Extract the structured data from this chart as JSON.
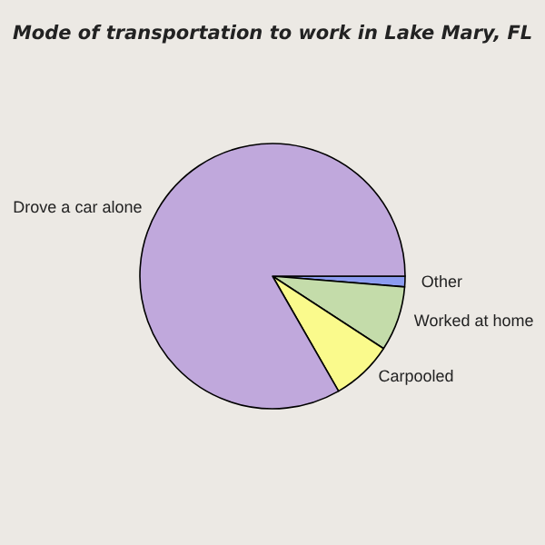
{
  "chart_data": {
    "type": "pie",
    "title": "Mode of transportation to work in Lake Mary, FL",
    "categories": [
      "Other",
      "Worked at home",
      "Carpooled",
      "Drove a car alone"
    ],
    "values": [
      1.3,
      7.9,
      7.5,
      83.3
    ],
    "colors": [
      "#8c9cf0",
      "#c4dcaa",
      "#fafa8c",
      "#c0a8dc"
    ],
    "legend": false
  }
}
